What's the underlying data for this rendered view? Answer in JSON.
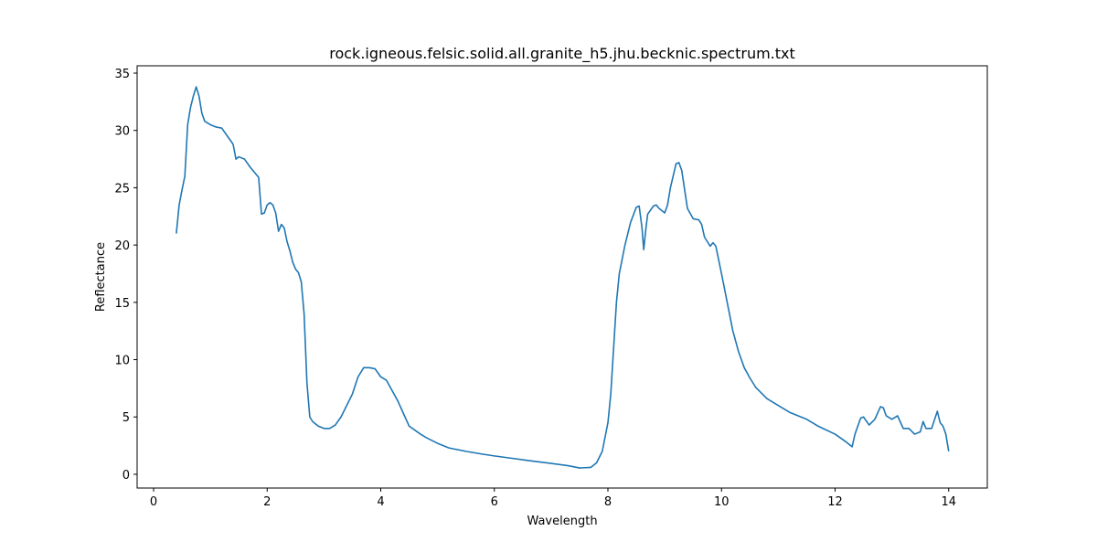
{
  "chart_data": {
    "type": "line",
    "title": "rock.igneous.felsic.solid.all.granite_h5.jhu.becknic.spectrum.txt",
    "x_label": "Wavelength",
    "y_label": "Reflectance",
    "color": "#1f77b4",
    "x": [
      0.4,
      0.45,
      0.5,
      0.55,
      0.6,
      0.65,
      0.7,
      0.75,
      0.8,
      0.85,
      0.9,
      1.0,
      1.1,
      1.2,
      1.3,
      1.4,
      1.45,
      1.5,
      1.6,
      1.7,
      1.8,
      1.85,
      1.9,
      1.95,
      2.0,
      2.05,
      2.1,
      2.15,
      2.2,
      2.25,
      2.3,
      2.35,
      2.4,
      2.45,
      2.5,
      2.55,
      2.6,
      2.65,
      2.7,
      2.75,
      2.8,
      2.9,
      3.0,
      3.1,
      3.2,
      3.3,
      3.4,
      3.5,
      3.6,
      3.7,
      3.8,
      3.9,
      4.0,
      4.1,
      4.2,
      4.3,
      4.4,
      4.5,
      4.7,
      4.8,
      5.0,
      5.2,
      5.5,
      5.8,
      6.0,
      6.3,
      6.6,
      7.0,
      7.3,
      7.5,
      7.7,
      7.8,
      7.9,
      8.0,
      8.05,
      8.1,
      8.15,
      8.2,
      8.3,
      8.4,
      8.5,
      8.55,
      8.6,
      8.63,
      8.67,
      8.7,
      8.8,
      8.85,
      8.9,
      9.0,
      9.05,
      9.1,
      9.2,
      9.25,
      9.3,
      9.4,
      9.5,
      9.6,
      9.65,
      9.7,
      9.8,
      9.85,
      9.9,
      10.0,
      10.1,
      10.2,
      10.3,
      10.4,
      10.5,
      10.6,
      10.8,
      11.0,
      11.2,
      11.5,
      11.7,
      12.0,
      12.2,
      12.3,
      12.35,
      12.45,
      12.5,
      12.6,
      12.7,
      12.8,
      12.85,
      12.9,
      13.0,
      13.1,
      13.2,
      13.3,
      13.4,
      13.5,
      13.55,
      13.6,
      13.7,
      13.8,
      13.85,
      13.9,
      13.95,
      14.0
    ],
    "values": [
      21,
      23.5,
      24.8,
      26,
      30.5,
      32,
      33,
      33.8,
      33,
      31.5,
      30.8,
      30.5,
      30.3,
      30.2,
      29.5,
      28.8,
      27.5,
      27.7,
      27.5,
      26.8,
      26.2,
      25.9,
      22.7,
      22.8,
      23.5,
      23.7,
      23.5,
      22.8,
      21.2,
      21.8,
      21.5,
      20.3,
      19.5,
      18.5,
      17.9,
      17.6,
      16.8,
      14,
      8,
      5,
      4.6,
      4.2,
      4.0,
      4.0,
      4.3,
      5,
      6,
      7,
      8.5,
      9.3,
      9.3,
      9.2,
      8.5,
      8.2,
      7.3,
      6.4,
      5.3,
      4.2,
      3.5,
      3.2,
      2.7,
      2.3,
      2.0,
      1.75,
      1.6,
      1.4,
      1.2,
      0.95,
      0.75,
      0.55,
      0.6,
      1.0,
      2,
      4.5,
      7,
      11,
      15,
      17.5,
      20,
      22,
      23.3,
      23.4,
      21.5,
      19.6,
      21.5,
      22.7,
      23.4,
      23.5,
      23.2,
      22.8,
      23.5,
      25,
      27.1,
      27.2,
      26.5,
      23.2,
      22.3,
      22.2,
      21.8,
      20.7,
      19.9,
      20.2,
      19.9,
      17.5,
      15,
      12.5,
      10.7,
      9.3,
      8.4,
      7.6,
      6.6,
      6.0,
      5.4,
      4.8,
      4.2,
      3.5,
      2.8,
      2.4,
      3.5,
      4.9,
      5.0,
      4.3,
      4.8,
      5.9,
      5.8,
      5.1,
      4.8,
      5.1,
      4.0,
      4.0,
      3.5,
      3.7,
      4.6,
      4.0,
      4.0,
      5.5,
      4.5,
      4.2,
      3.5,
      2.0
    ],
    "xlim": [
      -0.29,
      14.68
    ],
    "ylim": [
      -1.2,
      35.64
    ],
    "xticks": [
      0,
      2,
      4,
      6,
      8,
      10,
      12,
      14
    ],
    "yticks": [
      0,
      5,
      10,
      15,
      20,
      25,
      30,
      35
    ]
  }
}
